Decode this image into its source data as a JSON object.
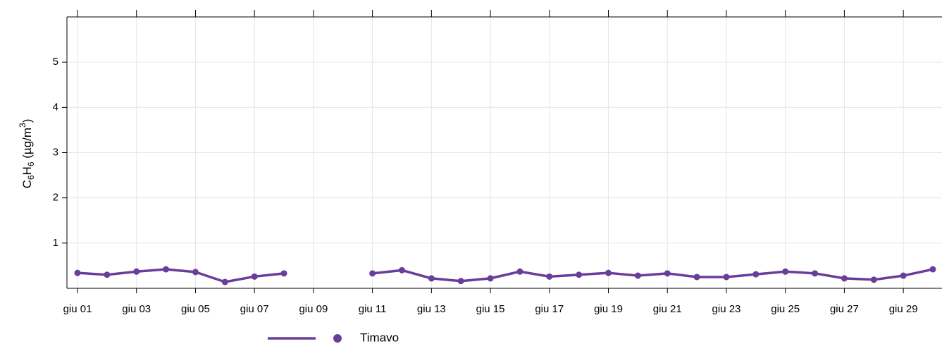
{
  "chart_data": {
    "type": "line",
    "ylabel": [
      "C",
      "6",
      "H",
      "6",
      " (µg/m",
      "3",
      ")"
    ],
    "categories": [
      "giu 01",
      null,
      "giu 03",
      null,
      "giu 05",
      null,
      "giu 07",
      null,
      "giu 09",
      null,
      "giu 11",
      null,
      "giu 13",
      null,
      "giu 15",
      null,
      "giu 17",
      null,
      "giu 19",
      null,
      "giu 21",
      null,
      "giu 23",
      null,
      "giu 25",
      null,
      "giu 27",
      null,
      "giu 29",
      null
    ],
    "series": [
      {
        "name": "Timavo",
        "color": "#6a3d9a",
        "values": [
          0.34,
          0.3,
          0.37,
          0.42,
          0.36,
          0.14,
          0.26,
          0.33,
          null,
          null,
          0.33,
          0.4,
          0.22,
          0.16,
          0.22,
          0.37,
          0.26,
          0.3,
          0.34,
          0.28,
          0.33,
          0.25,
          0.25,
          0.31,
          0.37,
          0.33,
          0.22,
          0.19,
          0.28,
          0.42
        ]
      }
    ],
    "ylim": [
      0,
      6
    ],
    "yticks": [
      1,
      2,
      3,
      4,
      5
    ],
    "grid": true,
    "legend": "bottom"
  }
}
